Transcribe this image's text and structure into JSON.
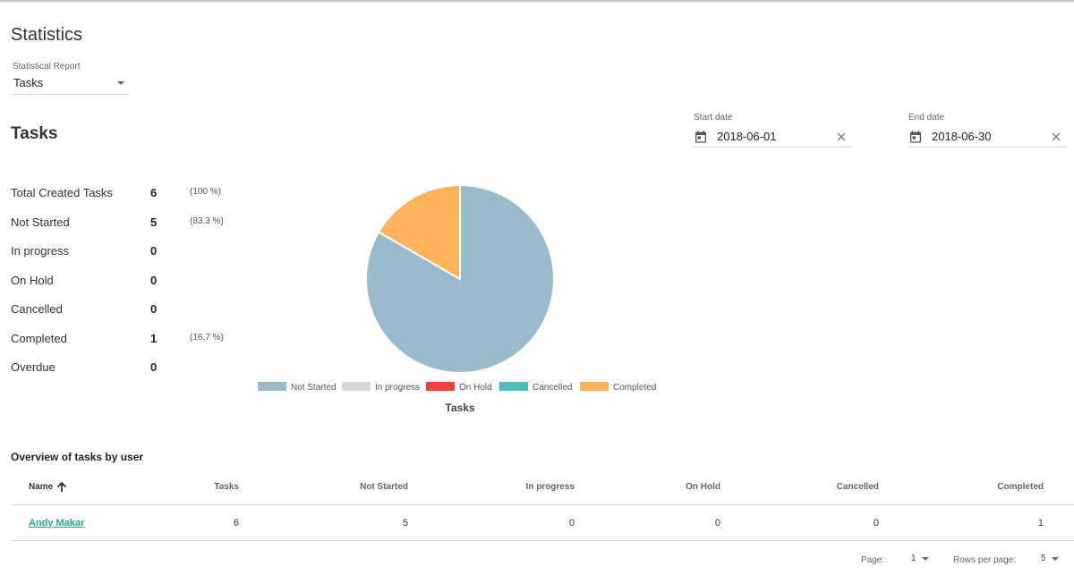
{
  "page": {
    "title": "Statistics"
  },
  "report": {
    "label": "Statistical Report",
    "value": "Tasks"
  },
  "section": {
    "title": "Tasks"
  },
  "dates": {
    "start": {
      "label": "Start date",
      "value": "2018-06-01"
    },
    "end": {
      "label": "End date",
      "value": "2018-06-30"
    }
  },
  "stats": [
    {
      "name": "Total Created Tasks",
      "value": "6",
      "pct": "(100 %)"
    },
    {
      "name": "Not Started",
      "value": "5",
      "pct": "(83.3 %)"
    },
    {
      "name": "In progress",
      "value": "0",
      "pct": ""
    },
    {
      "name": "On Hold",
      "value": "0",
      "pct": ""
    },
    {
      "name": "Cancelled",
      "value": "0",
      "pct": ""
    },
    {
      "name": "Completed",
      "value": "1",
      "pct": "(16.7 %)"
    },
    {
      "name": "Overdue",
      "value": "0",
      "pct": ""
    }
  ],
  "chart_data": {
    "type": "pie",
    "title": "Tasks",
    "legend_position": "bottom",
    "slices": [
      {
        "label": "Not Started",
        "value": 5,
        "color": "#9bbacc"
      },
      {
        "label": "In progress",
        "value": 0,
        "color": "#d9d9d9"
      },
      {
        "label": "On Hold",
        "value": 0,
        "color": "#ee4444"
      },
      {
        "label": "Cancelled",
        "value": 0,
        "color": "#4bbfbf"
      },
      {
        "label": "Completed",
        "value": 1,
        "color": "#fdb35c"
      }
    ]
  },
  "overview": {
    "title": "Overview of tasks by user",
    "columns": {
      "name": "Name",
      "tasks": "Tasks",
      "not_started": "Not Started",
      "in_progress": "In progress",
      "on_hold": "On Hold",
      "cancelled": "Cancelled",
      "completed": "Completed"
    },
    "rows": [
      {
        "name": "Andy Makar",
        "tasks": "6",
        "not_started": "5",
        "in_progress": "0",
        "on_hold": "0",
        "cancelled": "0",
        "completed": "1"
      }
    ]
  },
  "pagination": {
    "page_label": "Page:",
    "page_value": "1",
    "rows_label": "Rows per page:",
    "rows_value": "5"
  },
  "colors": {
    "accent": "#26a69a",
    "text": "#333333",
    "divider": "#e0e0e0"
  }
}
